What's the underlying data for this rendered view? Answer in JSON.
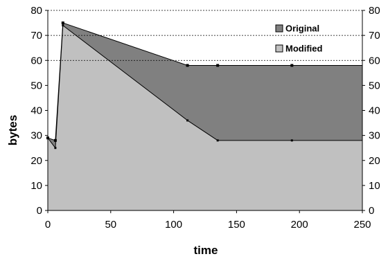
{
  "chart_data": {
    "type": "area",
    "title": "",
    "xlabel": "time",
    "ylabel": "bytes",
    "xlim": [
      0,
      250
    ],
    "ylim": [
      0,
      80
    ],
    "x_ticks": [
      0,
      50,
      100,
      150,
      200,
      250
    ],
    "y_ticks": [
      0,
      10,
      20,
      30,
      40,
      50,
      60,
      70,
      80
    ],
    "secondary_y_axis": true,
    "grid": "horizontal dashed at 60, 70, 80",
    "legend_placement": "top-right",
    "series": [
      {
        "name": "Original",
        "color": "#808080",
        "x": [
          0,
          6,
          12,
          111,
          135,
          194,
          250
        ],
        "values": [
          29,
          28,
          75,
          58,
          58,
          58,
          58
        ]
      },
      {
        "name": "Modified",
        "color": "#c0c0c0",
        "x": [
          0,
          6,
          12,
          111,
          135,
          194,
          250
        ],
        "values": [
          29,
          25,
          74,
          36,
          28,
          28,
          28
        ]
      }
    ]
  }
}
